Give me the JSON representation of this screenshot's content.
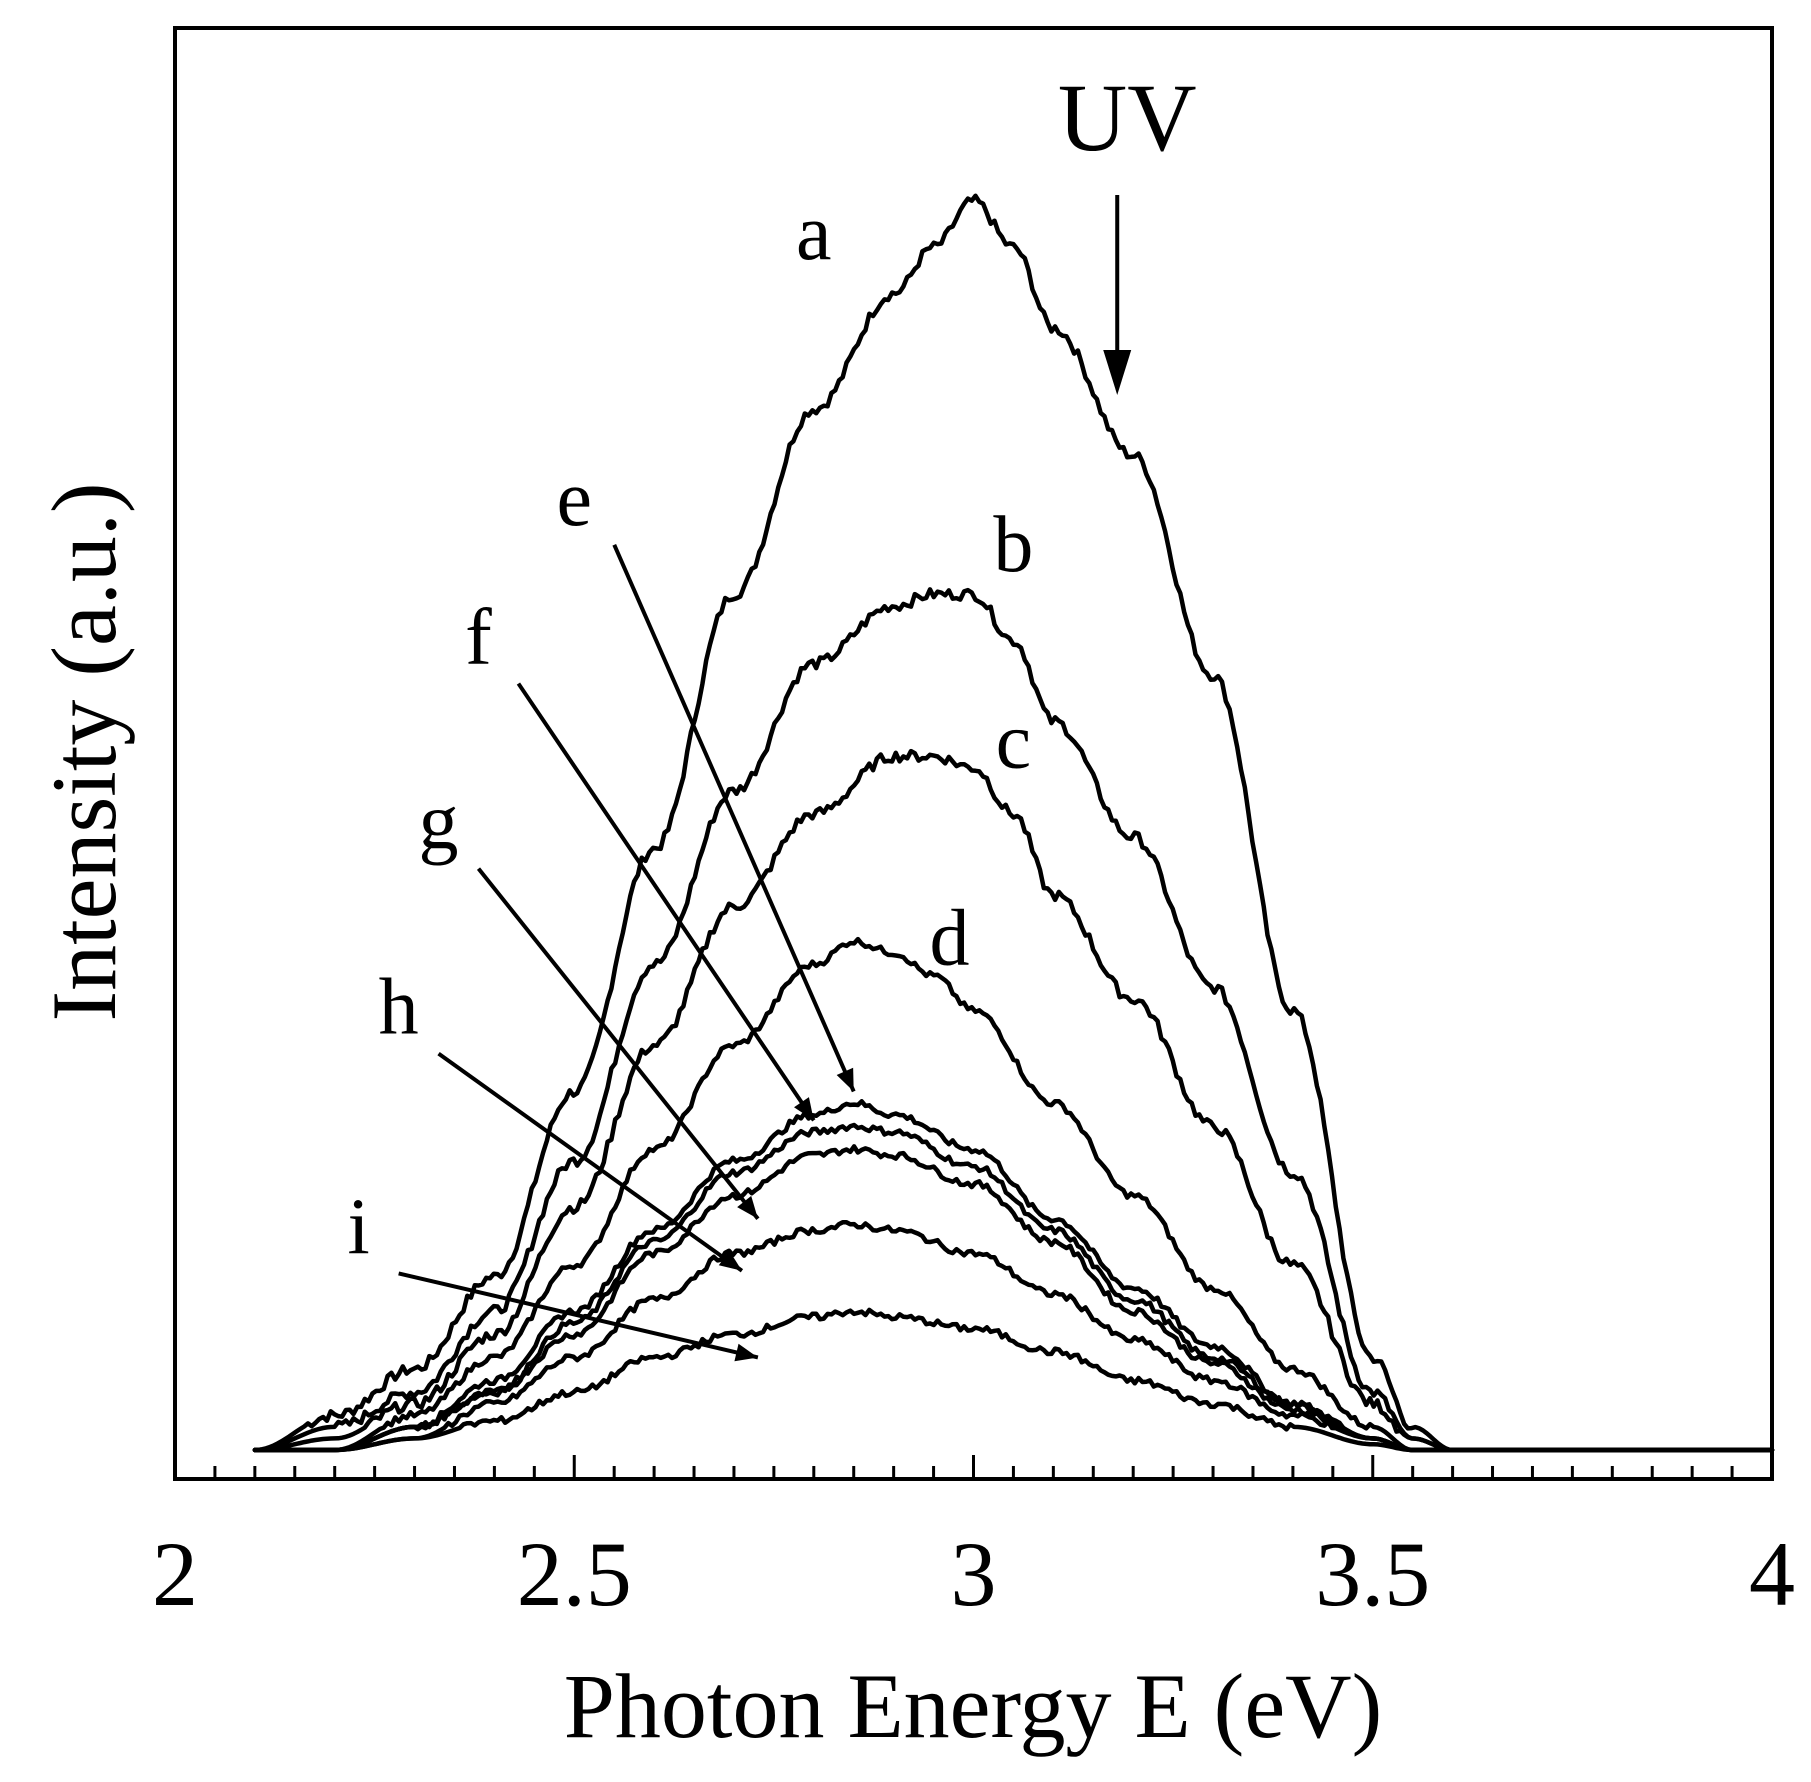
{
  "chart_data": {
    "type": "line",
    "title": "",
    "xlabel": "Photon Energy E (eV)",
    "ylabel": "Intensity (a.u.)",
    "xlim": [
      2,
      4
    ],
    "ylim": [
      0,
      1.15
    ],
    "x_ticks": [
      "2",
      "2.5",
      "3",
      "3.5",
      "4"
    ],
    "x_tick_values": [
      2,
      2.5,
      3,
      3.5,
      4
    ],
    "y_tick_labels": false,
    "grid": false,
    "legend": "none (curves labeled a–i directly)",
    "annotation": {
      "text": "UV",
      "x": 3.18,
      "arrow": "down"
    },
    "series": [
      {
        "name": "a",
        "x": [
          2.1,
          2.2,
          2.3,
          2.4,
          2.5,
          2.6,
          2.7,
          2.8,
          2.9,
          2.95,
          3.0,
          3.05,
          3.1,
          3.2,
          3.3,
          3.4,
          3.5,
          3.55,
          3.6,
          3.7,
          3.8,
          4.0
        ],
        "y": [
          0.0,
          0.03,
          0.07,
          0.15,
          0.31,
          0.52,
          0.74,
          0.9,
          1.0,
          1.04,
          1.08,
          1.04,
          0.97,
          0.86,
          0.67,
          0.38,
          0.08,
          0.02,
          0.0,
          0.0,
          0.0,
          0.0
        ]
      },
      {
        "name": "b",
        "x": [
          2.1,
          2.2,
          2.3,
          2.4,
          2.5,
          2.6,
          2.7,
          2.8,
          2.9,
          2.95,
          3.0,
          3.05,
          3.1,
          3.2,
          3.3,
          3.4,
          3.5,
          3.55,
          3.6,
          3.7,
          4.0
        ],
        "y": [
          0.0,
          0.02,
          0.05,
          0.12,
          0.25,
          0.42,
          0.57,
          0.68,
          0.73,
          0.74,
          0.74,
          0.7,
          0.63,
          0.53,
          0.4,
          0.24,
          0.05,
          0.01,
          0.0,
          0.0,
          0.0
        ]
      },
      {
        "name": "c",
        "x": [
          2.1,
          2.2,
          2.3,
          2.4,
          2.5,
          2.6,
          2.7,
          2.8,
          2.9,
          2.95,
          3.0,
          3.05,
          3.1,
          3.2,
          3.3,
          3.4,
          3.5,
          3.55,
          3.6,
          3.7,
          4.0
        ],
        "y": [
          0.0,
          0.01,
          0.04,
          0.1,
          0.21,
          0.35,
          0.47,
          0.55,
          0.6,
          0.6,
          0.59,
          0.55,
          0.48,
          0.39,
          0.28,
          0.16,
          0.04,
          0.01,
          0.0,
          0.0,
          0.0
        ]
      },
      {
        "name": "d",
        "x": [
          2.2,
          2.3,
          2.4,
          2.5,
          2.6,
          2.7,
          2.8,
          2.85,
          2.9,
          2.95,
          3.0,
          3.1,
          3.2,
          3.3,
          3.4,
          3.5,
          3.55,
          3.6,
          4.0
        ],
        "y": [
          0.0,
          0.03,
          0.08,
          0.16,
          0.26,
          0.35,
          0.42,
          0.44,
          0.43,
          0.41,
          0.38,
          0.3,
          0.22,
          0.14,
          0.07,
          0.02,
          0.0,
          0.0,
          0.0
        ]
      },
      {
        "name": "e",
        "x": [
          2.2,
          2.3,
          2.4,
          2.5,
          2.6,
          2.7,
          2.8,
          2.85,
          2.9,
          3.0,
          3.1,
          3.2,
          3.3,
          3.4,
          3.5,
          3.55,
          3.6,
          4.0
        ],
        "y": [
          0.0,
          0.02,
          0.06,
          0.12,
          0.19,
          0.25,
          0.29,
          0.3,
          0.29,
          0.26,
          0.2,
          0.14,
          0.09,
          0.04,
          0.01,
          0.0,
          0.0,
          0.0
        ]
      },
      {
        "name": "f",
        "x": [
          2.2,
          2.3,
          2.4,
          2.5,
          2.6,
          2.7,
          2.8,
          2.85,
          2.9,
          3.0,
          3.1,
          3.2,
          3.3,
          3.4,
          3.5,
          3.55,
          3.6,
          4.0
        ],
        "y": [
          0.0,
          0.02,
          0.05,
          0.11,
          0.18,
          0.24,
          0.275,
          0.28,
          0.275,
          0.245,
          0.19,
          0.13,
          0.08,
          0.04,
          0.01,
          0.0,
          0.0,
          0.0
        ]
      },
      {
        "name": "g",
        "x": [
          2.2,
          2.3,
          2.4,
          2.5,
          2.6,
          2.7,
          2.8,
          2.85,
          2.9,
          3.0,
          3.1,
          3.2,
          3.3,
          3.4,
          3.5,
          3.55,
          3.6,
          4.0
        ],
        "y": [
          0.0,
          0.02,
          0.05,
          0.1,
          0.17,
          0.22,
          0.255,
          0.26,
          0.255,
          0.23,
          0.18,
          0.12,
          0.075,
          0.035,
          0.01,
          0.0,
          0.0,
          0.0
        ]
      },
      {
        "name": "h",
        "x": [
          2.2,
          2.3,
          2.4,
          2.5,
          2.6,
          2.7,
          2.8,
          2.85,
          2.9,
          3.0,
          3.1,
          3.2,
          3.3,
          3.4,
          3.5,
          3.55,
          3.6,
          4.0
        ],
        "y": [
          0.0,
          0.01,
          0.04,
          0.08,
          0.13,
          0.17,
          0.19,
          0.195,
          0.19,
          0.17,
          0.135,
          0.095,
          0.06,
          0.03,
          0.01,
          0.0,
          0.0,
          0.0
        ]
      },
      {
        "name": "i",
        "x": [
          2.2,
          2.3,
          2.4,
          2.5,
          2.6,
          2.7,
          2.8,
          2.85,
          2.9,
          3.0,
          3.1,
          3.2,
          3.3,
          3.4,
          3.5,
          3.55,
          3.6,
          4.0
        ],
        "y": [
          0.0,
          0.01,
          0.025,
          0.05,
          0.08,
          0.1,
          0.115,
          0.12,
          0.115,
          0.105,
          0.085,
          0.06,
          0.04,
          0.02,
          0.005,
          0.0,
          0.0,
          0.0
        ]
      }
    ],
    "curve_labels": [
      {
        "name": "a",
        "label_x": 2.8,
        "label_y": 1.03,
        "target_x": null,
        "target_y": null
      },
      {
        "name": "b",
        "label_x": 3.05,
        "label_y": 0.76,
        "target_x": null,
        "target_y": null
      },
      {
        "name": "c",
        "label_x": 3.05,
        "label_y": 0.59,
        "target_x": null,
        "target_y": null
      },
      {
        "name": "d",
        "label_x": 2.97,
        "label_y": 0.42,
        "target_x": null,
        "target_y": null
      },
      {
        "name": "e",
        "label_x": 2.5,
        "label_y": 0.8,
        "target_x": 2.85,
        "target_y": 0.31
      },
      {
        "name": "f",
        "label_x": 2.38,
        "label_y": 0.68,
        "target_x": 2.8,
        "target_y": 0.285
      },
      {
        "name": "g",
        "label_x": 2.33,
        "label_y": 0.52,
        "target_x": 2.73,
        "target_y": 0.2
      },
      {
        "name": "h",
        "label_x": 2.28,
        "label_y": 0.36,
        "target_x": 2.71,
        "target_y": 0.155
      },
      {
        "name": "i",
        "label_x": 2.23,
        "label_y": 0.17,
        "target_x": 2.73,
        "target_y": 0.08
      }
    ]
  }
}
